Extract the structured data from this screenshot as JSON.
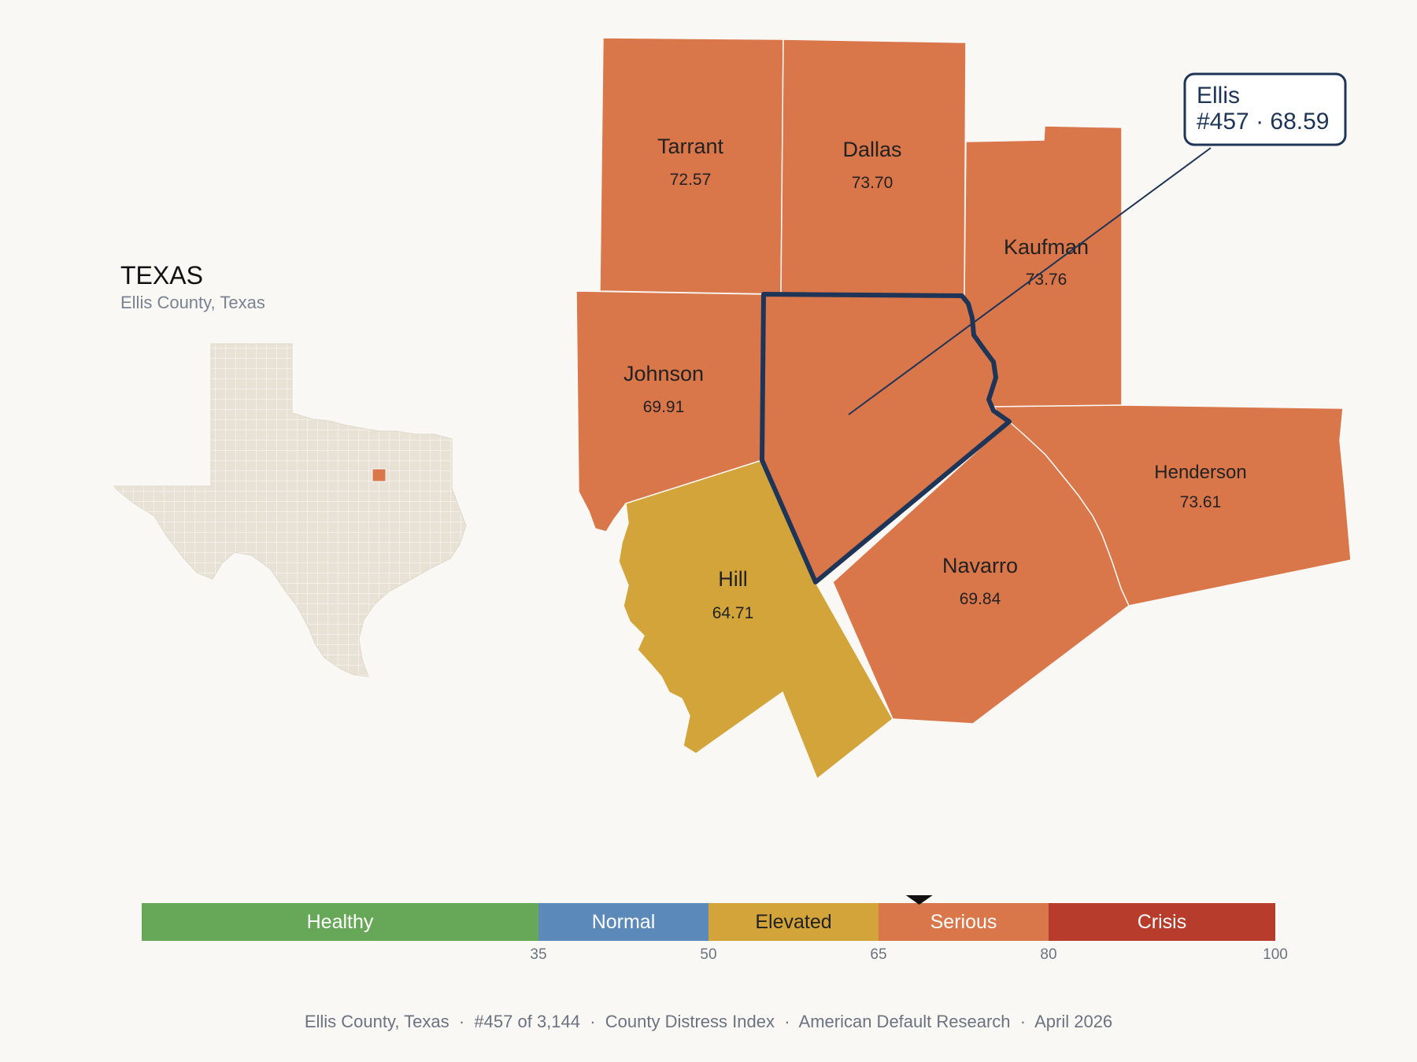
{
  "inset": {
    "title": "TEXAS",
    "subtitle": "Ellis County, Texas"
  },
  "colors": {
    "healthy": "#66a858",
    "normal": "#5b8aba",
    "elevated": "#d2a43a",
    "serious": "#d9764a",
    "crisis": "#b83c2b",
    "highlight_outline": "#1e3557",
    "state_fill": "#e8e2d6"
  },
  "counties": [
    {
      "id": "tarrant",
      "name": "Tarrant",
      "value": "72.57",
      "level": "serious"
    },
    {
      "id": "dallas",
      "name": "Dallas",
      "value": "73.70",
      "level": "serious"
    },
    {
      "id": "kaufman",
      "name": "Kaufman",
      "value": "73.76",
      "level": "serious"
    },
    {
      "id": "johnson",
      "name": "Johnson",
      "value": "69.91",
      "level": "serious"
    },
    {
      "id": "henderson",
      "name": "Henderson",
      "value": "73.61",
      "level": "serious"
    },
    {
      "id": "navarro",
      "name": "Navarro",
      "value": "69.84",
      "level": "serious"
    },
    {
      "id": "hill",
      "name": "Hill",
      "value": "64.71",
      "level": "elevated"
    },
    {
      "id": "ellis",
      "name": "Ellis",
      "value": "68.59",
      "level": "serious",
      "highlighted": true
    }
  ],
  "callout": {
    "line1": "Ellis",
    "line2": "#457 · 68.59"
  },
  "legend": {
    "min": 0,
    "max": 100,
    "marker_value": 68.59,
    "bands": [
      {
        "label": "Healthy",
        "from": 0,
        "to": 35,
        "color": "#66a858"
      },
      {
        "label": "Normal",
        "from": 35,
        "to": 50,
        "color": "#5b8aba"
      },
      {
        "label": "Elevated",
        "from": 50,
        "to": 65,
        "color": "#d2a43a"
      },
      {
        "label": "Serious",
        "from": 65,
        "to": 80,
        "color": "#d9764a"
      },
      {
        "label": "Crisis",
        "from": 80,
        "to": 100,
        "color": "#b83c2b"
      }
    ],
    "ticks": [
      "35",
      "50",
      "65",
      "80",
      "100"
    ]
  },
  "footer": "Ellis County, Texas  ·  #457 of 3,144  ·  County Distress Index  ·  American Default Research  ·  April 2026"
}
